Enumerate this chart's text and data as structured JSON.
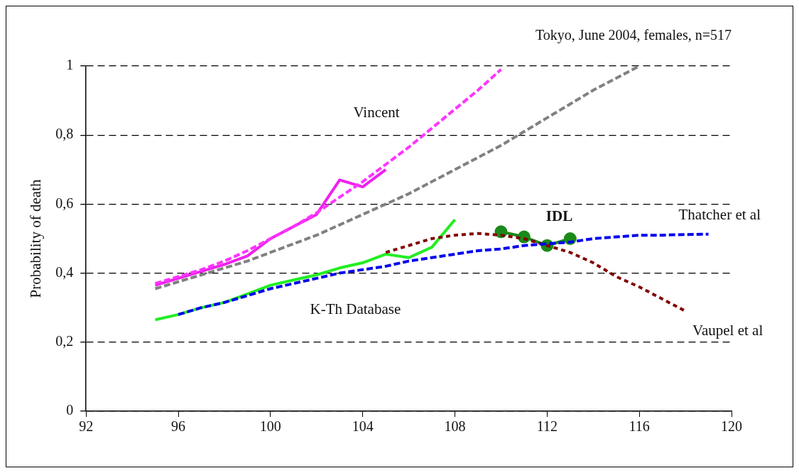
{
  "chart_data": {
    "type": "line",
    "title": "Tokyo, June 2004, females, n=517",
    "ylabel": "Probability of death",
    "xlim": [
      92,
      120
    ],
    "xticks": [
      92,
      96,
      100,
      104,
      108,
      112,
      116,
      120
    ],
    "ylim": [
      0,
      1
    ],
    "yticks": [
      0,
      {
        "value": 0.2,
        "label": "0,2"
      },
      {
        "value": 0.4,
        "label": "0,4"
      },
      {
        "value": 0.6,
        "label": "0,6"
      },
      {
        "value": 0.8,
        "label": "0,8"
      },
      1
    ],
    "grid": "y",
    "legend": false,
    "marker": "none",
    "series": [
      {
        "color": "#808080",
        "line_style": "dashed",
        "x": [
          95,
          96,
          97,
          98,
          99,
          100,
          101,
          102,
          103,
          104,
          105,
          106,
          107,
          108,
          109,
          110,
          111,
          112,
          113,
          114,
          115,
          116
        ],
        "values": [
          0.355,
          0.375,
          0.395,
          0.415,
          0.435,
          0.46,
          0.485,
          0.51,
          0.54,
          0.57,
          0.6,
          0.63,
          0.665,
          0.7,
          0.735,
          0.77,
          0.81,
          0.85,
          0.89,
          0.93,
          0.965,
          1.0
        ]
      },
      {
        "name": "Vincent",
        "color": "#ff33ff",
        "line_style": "dashed",
        "x": [
          95,
          96,
          97,
          98,
          99,
          100,
          101,
          102,
          103,
          104,
          105,
          106,
          107,
          108,
          109,
          110
        ],
        "values": [
          0.37,
          0.39,
          0.41,
          0.435,
          0.465,
          0.5,
          0.535,
          0.575,
          0.62,
          0.665,
          0.715,
          0.765,
          0.82,
          0.875,
          0.93,
          0.99
        ]
      },
      {
        "color": "#ee22ee",
        "line_style": "solid",
        "x": [
          95,
          96,
          97,
          98,
          99,
          100,
          101,
          102,
          103,
          104,
          105
        ],
        "values": [
          0.365,
          0.385,
          0.405,
          0.425,
          0.45,
          0.5,
          0.535,
          0.57,
          0.67,
          0.65,
          0.7
        ]
      },
      {
        "name": "Thatcher et al",
        "color": "#0000ee",
        "line_style": "dashed",
        "x": [
          96,
          97,
          98,
          99,
          100,
          101,
          102,
          103,
          104,
          105,
          106,
          107,
          108,
          109,
          110,
          111,
          112,
          113,
          114,
          115,
          116,
          117,
          118,
          119
        ],
        "values": [
          0.28,
          0.3,
          0.315,
          0.335,
          0.355,
          0.37,
          0.385,
          0.4,
          0.41,
          0.42,
          0.435,
          0.445,
          0.455,
          0.465,
          0.47,
          0.48,
          0.485,
          0.49,
          0.5,
          0.505,
          0.51,
          0.51,
          0.512,
          0.513
        ]
      },
      {
        "name": "Vaupel et al",
        "color": "#800000",
        "line_style": "dotted",
        "x": [
          105,
          106,
          107,
          108,
          109,
          110,
          111,
          112,
          113,
          114,
          115,
          116,
          117,
          118
        ],
        "values": [
          0.46,
          0.48,
          0.5,
          0.51,
          0.515,
          0.51,
          0.5,
          0.48,
          0.46,
          0.43,
          0.39,
          0.36,
          0.325,
          0.29
        ]
      },
      {
        "name": "K-Th Database",
        "color": "#22ee22",
        "line_style": "solid",
        "x": [
          95,
          96,
          97,
          98,
          99,
          100,
          101,
          102,
          103,
          104,
          105,
          106,
          107,
          108
        ],
        "values": [
          0.265,
          0.28,
          0.3,
          0.315,
          0.34,
          0.365,
          0.38,
          0.395,
          0.415,
          0.43,
          0.455,
          0.445,
          0.475,
          0.555
        ]
      },
      {
        "name": "IDL",
        "color": "#1a8a1a",
        "line_style": "solid",
        "marker": "circle",
        "x": [
          110,
          111,
          112,
          113
        ],
        "values": [
          0.52,
          0.505,
          0.48,
          0.5
        ]
      }
    ]
  }
}
